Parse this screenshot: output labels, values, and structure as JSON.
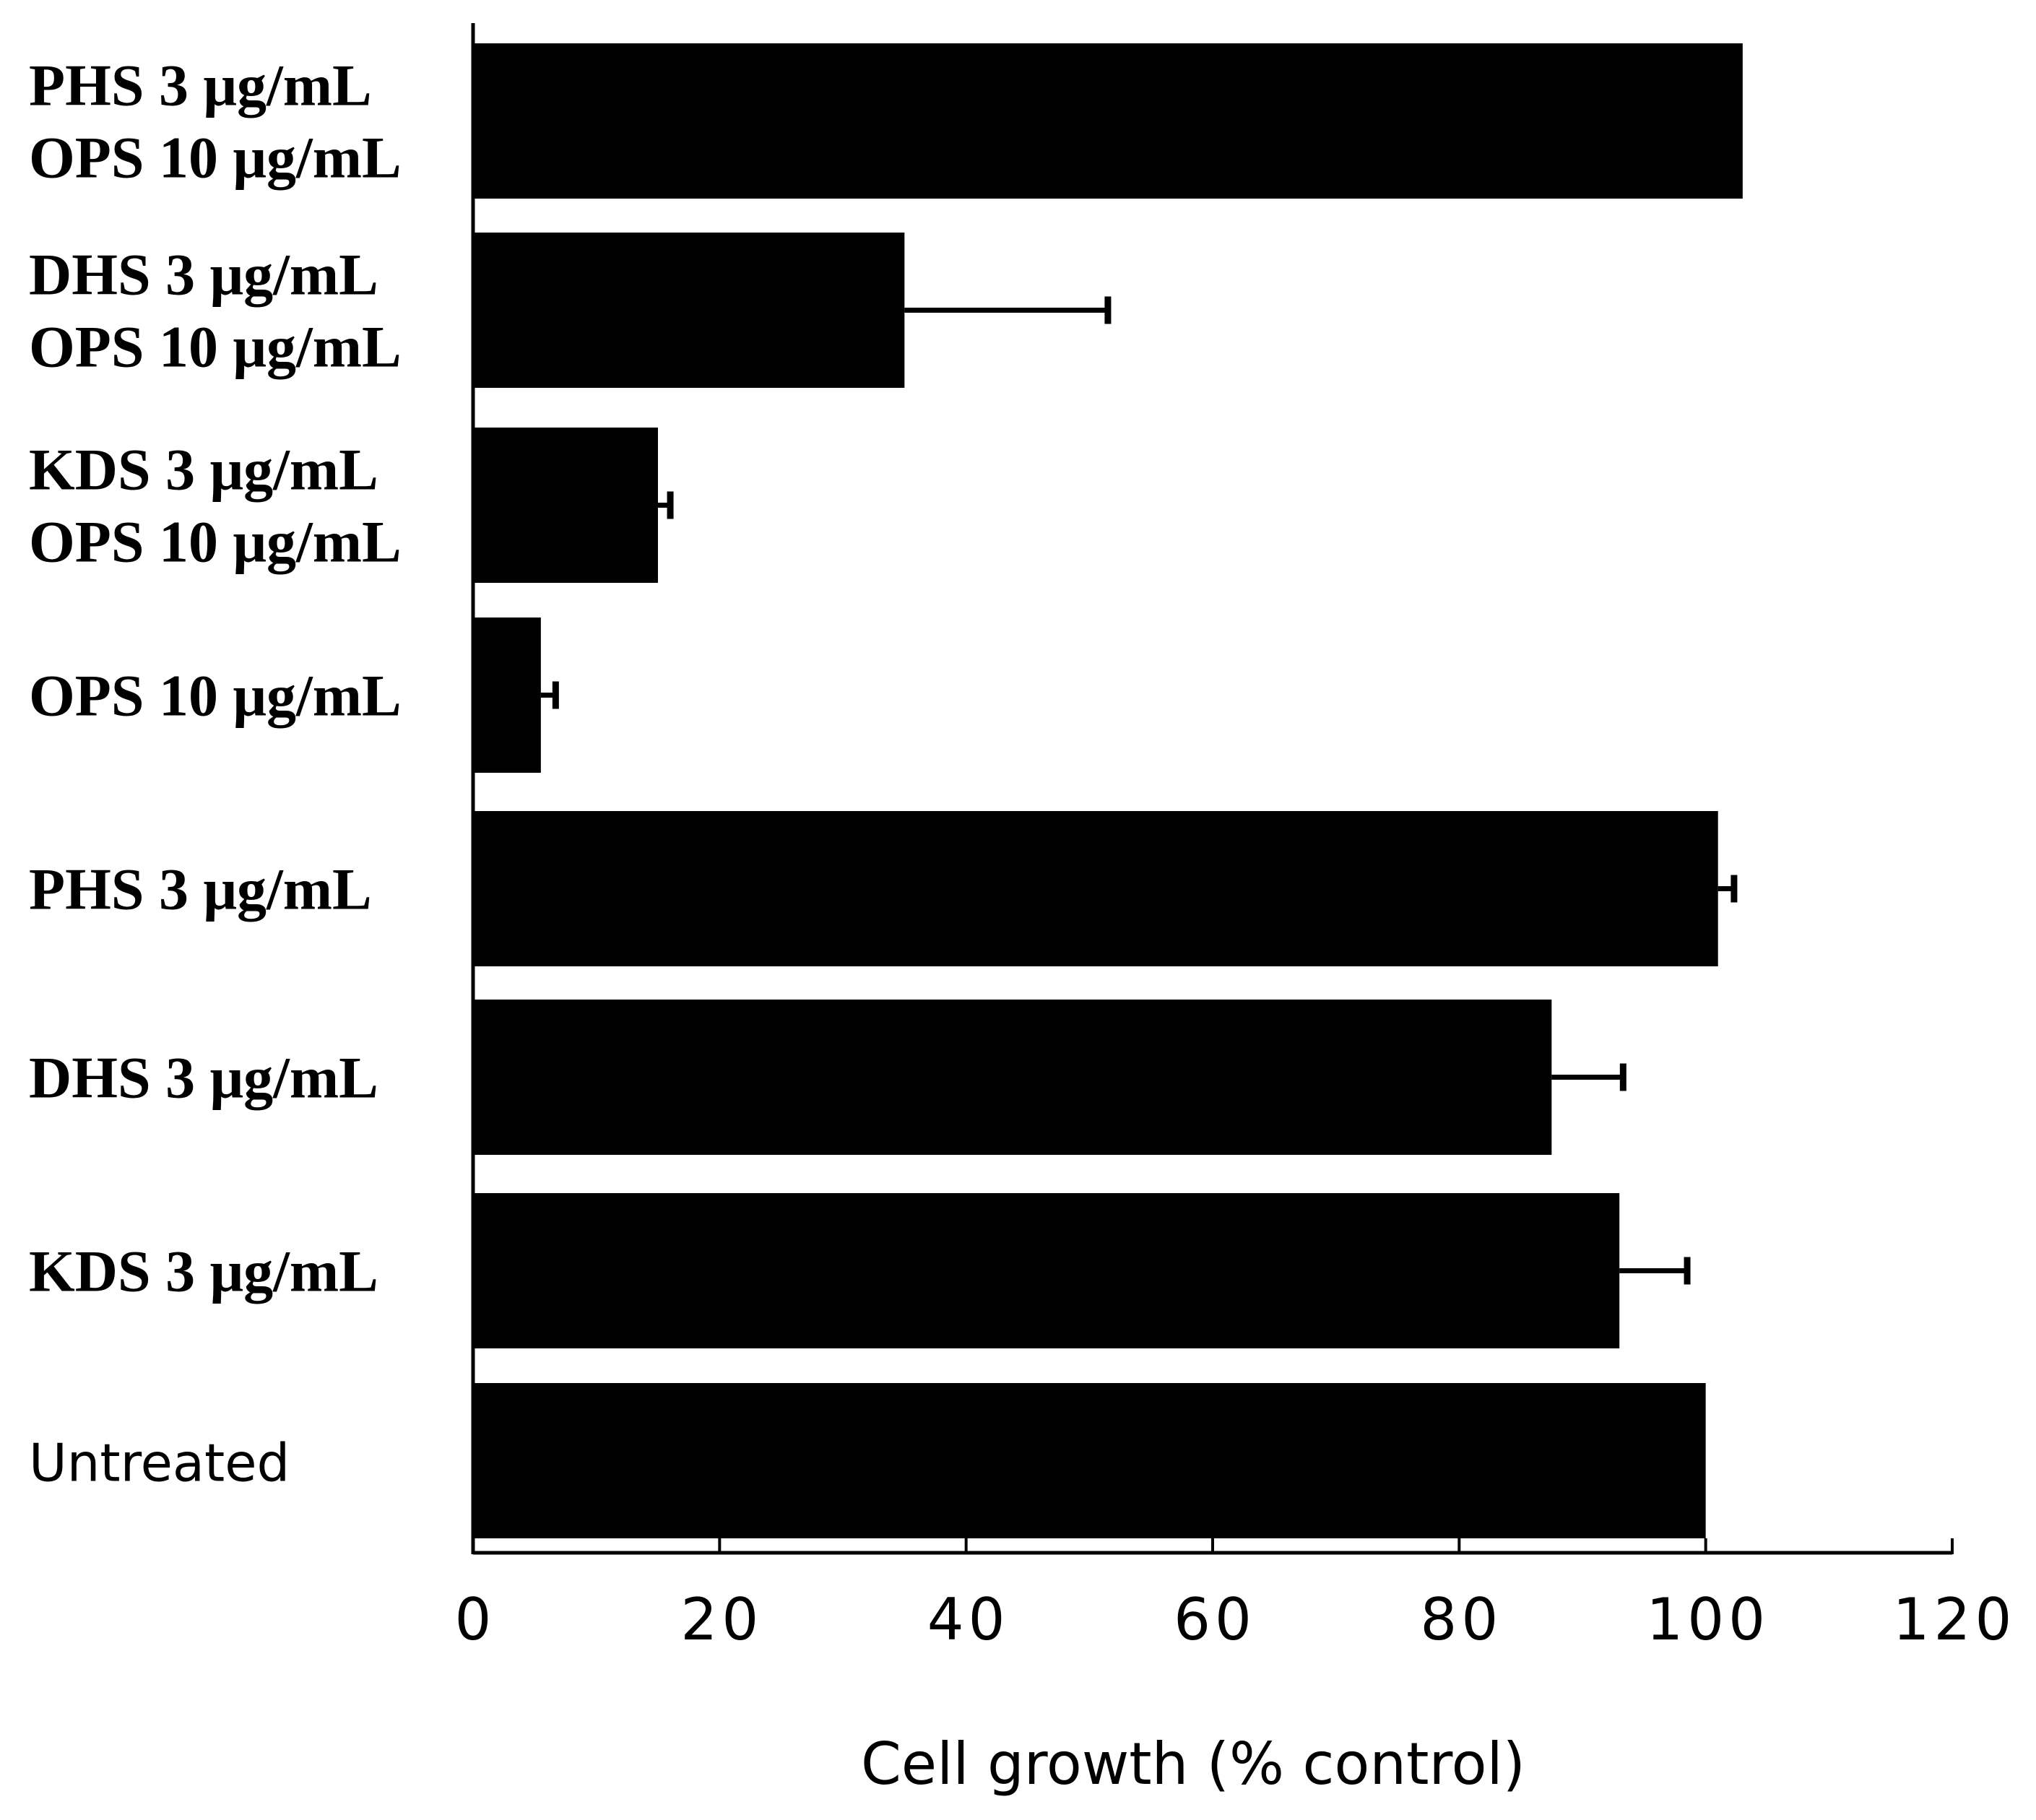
{
  "chart_data": {
    "type": "bar",
    "orientation": "horizontal",
    "title": "",
    "xlabel": "Cell growth (% control)",
    "ylabel": "",
    "xlim": [
      0,
      120
    ],
    "xticks": [
      0,
      20,
      40,
      60,
      80,
      100,
      120
    ],
    "grid": false,
    "bar_color": "#000000",
    "categories": [
      {
        "lines": [
          "PHS  3 μg/mL",
          "OPS  10 μg/mL"
        ],
        "style": "serif-bold"
      },
      {
        "lines": [
          "DHS  3 μg/mL",
          "OPS  10 μg/mL"
        ],
        "style": "serif-bold"
      },
      {
        "lines": [
          "KDS  3 μg/mL",
          "OPS  10 μg/mL"
        ],
        "style": "serif-bold"
      },
      {
        "lines": [
          "OPS  10 μg/mL"
        ],
        "style": "serif-bold"
      },
      {
        "lines": [
          "PHS  3 μg/mL"
        ],
        "style": "serif-bold"
      },
      {
        "lines": [
          "DHS  3 μg/mL"
        ],
        "style": "serif-bold"
      },
      {
        "lines": [
          "KDS  3 μg/mL"
        ],
        "style": "serif-bold"
      },
      {
        "lines": [
          "Untreated"
        ],
        "style": "sans"
      }
    ],
    "values": [
      103,
      35,
      15,
      5.5,
      101,
      87.5,
      93,
      100
    ],
    "errors": [
      0,
      16.5,
      1,
      1.2,
      1.3,
      5.8,
      5.5,
      0
    ]
  }
}
